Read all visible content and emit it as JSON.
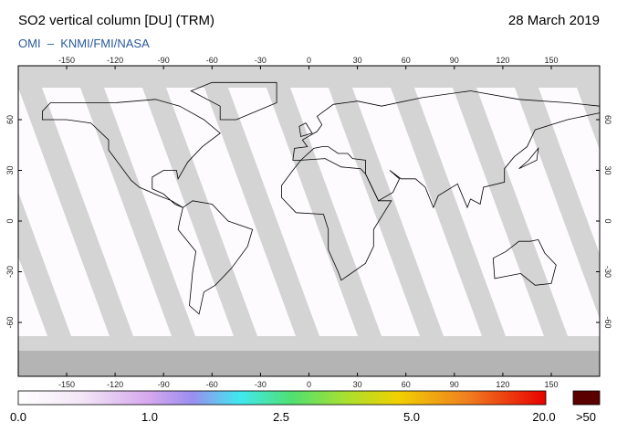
{
  "header": {
    "title": "SO2 vertical column [DU] (TRM)",
    "date": "28 March 2019",
    "subtitle": "OMI  –  KNMI/FMI/NASA"
  },
  "map": {
    "lon_ticks": [
      -150,
      -120,
      -90,
      -60,
      -30,
      0,
      30,
      60,
      90,
      120,
      150
    ],
    "lat_ticks": [
      60,
      30,
      0,
      -30,
      -60
    ]
  },
  "colorbar": {
    "labels": [
      "0.0",
      "1.0",
      "2.5",
      "5.0",
      "20.0"
    ],
    "overflow_label": ">50"
  }
}
